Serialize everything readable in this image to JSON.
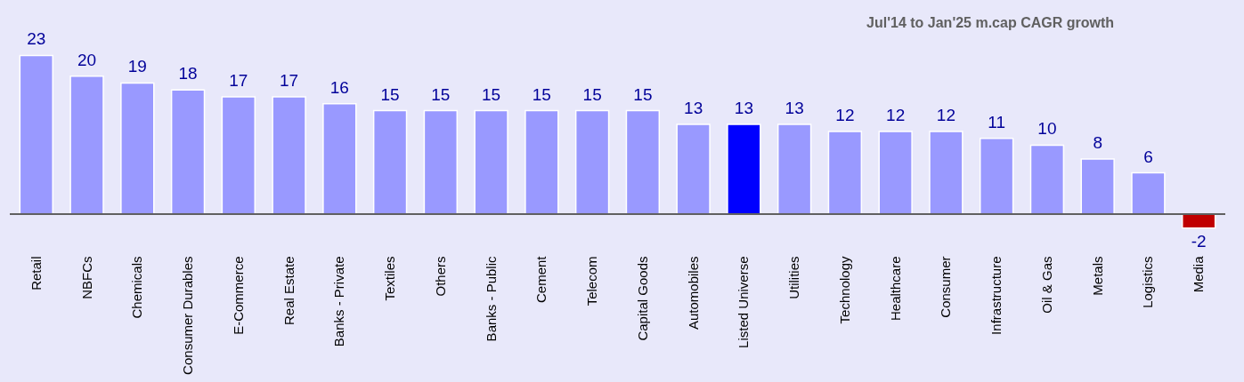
{
  "chart_data": {
    "type": "bar",
    "title": "Jul'14 to Jan'25 m.cap CAGR growth",
    "categories": [
      "Retail",
      "NBFCs",
      "Chemicals",
      "Consumer Durables",
      "E-Commerce",
      "Real Estate",
      "Banks - Private",
      "Textiles",
      "Others",
      "Banks - Public",
      "Cement",
      "Telecom",
      "Capital Goods",
      "Automobiles",
      "Listed Universe",
      "Utilities",
      "Technology",
      "Healthcare",
      "Consumer",
      "Infrastructure",
      "Oil & Gas",
      "Metals",
      "Logistics",
      "Media"
    ],
    "values": [
      23,
      20,
      19,
      18,
      17,
      17,
      16,
      15,
      15,
      15,
      15,
      15,
      15,
      13,
      13,
      13,
      12,
      12,
      12,
      11,
      10,
      8,
      6,
      -2
    ],
    "colors": [
      "#9999ff",
      "#9999ff",
      "#9999ff",
      "#9999ff",
      "#9999ff",
      "#9999ff",
      "#9999ff",
      "#9999ff",
      "#9999ff",
      "#9999ff",
      "#9999ff",
      "#9999ff",
      "#9999ff",
      "#9999ff",
      "#0000ff",
      "#9999ff",
      "#9999ff",
      "#9999ff",
      "#9999ff",
      "#9999ff",
      "#9999ff",
      "#9999ff",
      "#9999ff",
      "#c00000"
    ],
    "data_labels": true
  }
}
